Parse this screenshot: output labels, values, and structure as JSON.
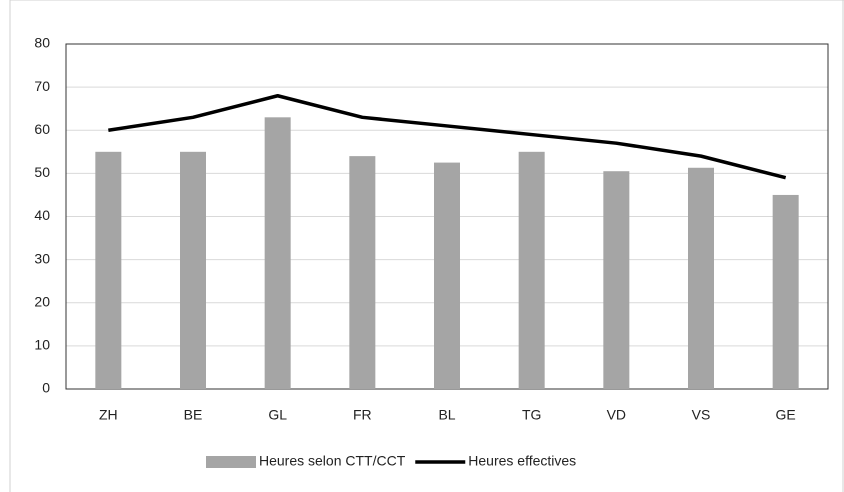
{
  "chart_data": {
    "type": "bar",
    "categories": [
      "ZH",
      "BE",
      "GL",
      "FR",
      "BL",
      "TG",
      "VD",
      "VS",
      "GE"
    ],
    "series": [
      {
        "name": "Heures selon CTT/CCT",
        "type": "bar",
        "color": "#a5a5a5",
        "values": [
          55,
          55,
          63,
          54,
          52.5,
          55,
          50.5,
          51.3,
          45
        ]
      },
      {
        "name": "Heures effectives",
        "type": "line",
        "color": "#000000",
        "values": [
          60,
          63,
          68,
          63,
          61,
          59,
          57,
          54,
          49
        ]
      }
    ],
    "ylim": [
      0,
      80
    ],
    "yticks": [
      0,
      10,
      20,
      30,
      40,
      50,
      60,
      70,
      80
    ],
    "grid": true,
    "legend": "bottom"
  }
}
